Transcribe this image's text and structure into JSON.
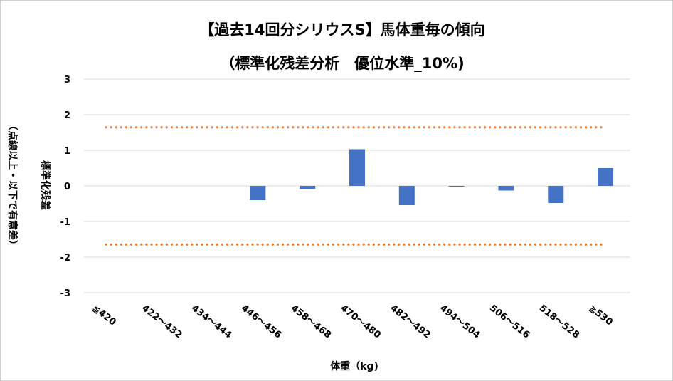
{
  "chart_data": {
    "type": "bar",
    "title": "【過去14回分シリウスS】馬体重毎の傾向",
    "subtitle": "（標準化残差分析　優位水準_10%)",
    "xlabel": "体重（kg)",
    "ylabel": "標準化残差",
    "ylabel_note": "（点線以上・以下で有意差）",
    "categories": [
      "≦420",
      "422～432",
      "434～444",
      "446～456",
      "458～468",
      "470～480",
      "482～492",
      "494～504",
      "506～516",
      "518～528",
      "≧530"
    ],
    "values": [
      0,
      0,
      0,
      -0.4,
      -0.09,
      1.03,
      -0.54,
      -0.02,
      -0.13,
      -0.48,
      0.5
    ],
    "ylim": [
      -3,
      3
    ],
    "yticks": [
      "3",
      "2",
      "1",
      "0",
      "-1",
      "-2",
      "-3"
    ],
    "threshold_upper": 1.645,
    "threshold_lower": -1.645,
    "bar_color": "#4472c4",
    "threshold_color": "#ed7d31",
    "grid": true
  }
}
